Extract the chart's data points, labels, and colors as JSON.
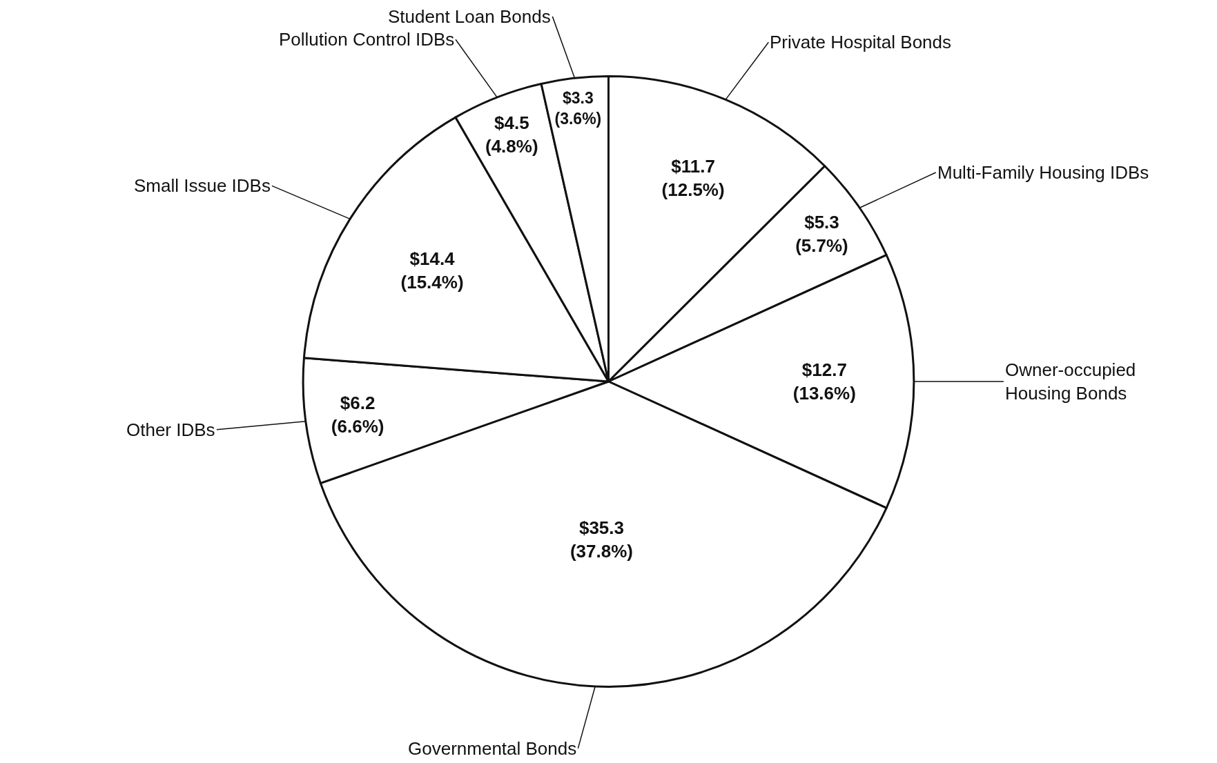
{
  "chart_data": {
    "type": "pie",
    "categories": [
      "Private Hospital Bonds",
      "Multi-Family Housing IDBs",
      "Owner-occupied\nHousing Bonds",
      "Governmental Bonds",
      "Other IDBs",
      "Small Issue IDBs",
      "Pollution Control IDBs",
      "Student Loan Bonds"
    ],
    "values": [
      11.7,
      5.3,
      12.7,
      35.3,
      6.2,
      14.4,
      4.5,
      3.3
    ],
    "value_labels": [
      "$11.7\n(12.5%)",
      "$5.3\n(5.7%)",
      "$12.7\n(13.6%)",
      "$35.3\n(37.8%)",
      "$6.2\n(6.6%)",
      "$14.4\n(15.4%)",
      "$4.5\n(4.8%)",
      "$3.3\n(3.6%)"
    ],
    "colors": [
      "#ffffff",
      "#ffffff",
      "#ffffff",
      "#ffffff",
      "#ffffff",
      "#ffffff",
      "#ffffff",
      "#ffffff"
    ],
    "legend": false
  }
}
